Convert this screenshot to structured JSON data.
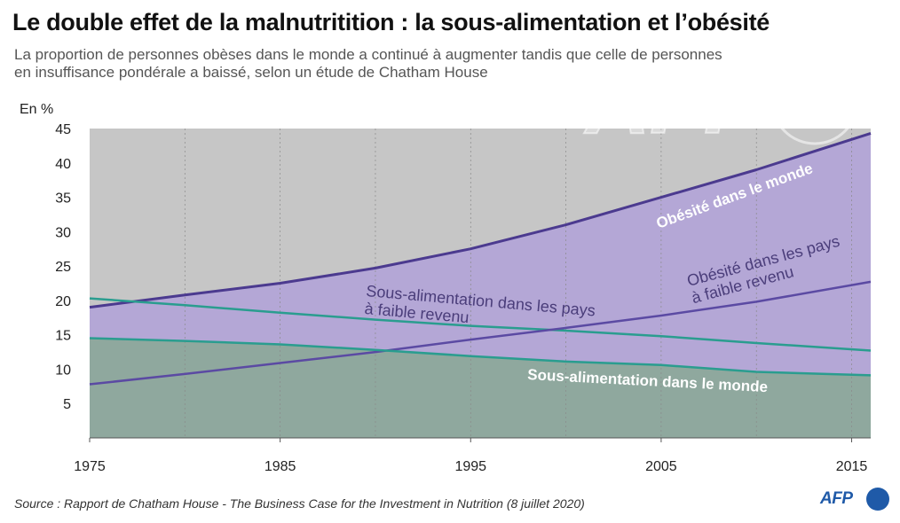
{
  "title": "Le double effet de la malnutritition : la sous-alimentation et l’obésité",
  "subtitle_line1": "La proportion de personnes obèses dans le monde a continué à augmenter tandis que celle de personnes",
  "subtitle_line2": "en insuffisance pondérale a baissé, selon un étude de Chatham House",
  "source": "Source : Rapport de Chatham House - The Business Case for the Investment in Nutrition (8 juillet 2020)",
  "logo_text": "AFP",
  "watermark_text": "AFP",
  "colors": {
    "background_grey": "#c6c6c6",
    "obesity_world_fill": "#b4a7d6",
    "obesity_world_line": "#4b3a8f",
    "undernutrition_world_fill": "#8fa89e",
    "undernutrition_line": "#2a9d8f",
    "obesity_low_income_line": "#5b4aa3"
  },
  "chart_data": {
    "type": "area",
    "ylabel": "En %",
    "xlabel": "",
    "xlim": [
      1975,
      2016
    ],
    "ylim": [
      0,
      45
    ],
    "x_ticks": [
      1975,
      1985,
      1995,
      2005,
      2015
    ],
    "y_ticks": [
      5,
      10,
      15,
      20,
      25,
      30,
      35,
      40,
      45
    ],
    "grid": "vertical",
    "x": [
      1975,
      1980,
      1985,
      1990,
      1995,
      2000,
      2005,
      2010,
      2016
    ],
    "series": [
      {
        "name": "Obésité dans le monde",
        "label_lines": [
          "Obésité dans le monde"
        ],
        "values": [
          19.0,
          20.8,
          22.5,
          24.7,
          27.5,
          31.0,
          35.0,
          39.0,
          44.3
        ]
      },
      {
        "name": "Sous-alimentation dans les pays à faible revenu",
        "label_lines": [
          "Sous-alimentation dans les pays",
          "à faible revenu"
        ],
        "values": [
          20.3,
          19.3,
          18.2,
          17.2,
          16.3,
          15.6,
          14.8,
          13.8,
          12.7
        ]
      },
      {
        "name": "Obésité dans les pays à faible revenu",
        "label_lines": [
          "Obésité dans les pays",
          "à faible revenu"
        ],
        "values": [
          7.8,
          9.3,
          10.9,
          12.5,
          14.3,
          16.0,
          17.8,
          19.8,
          22.7
        ]
      },
      {
        "name": "Sous-alimentation dans le monde",
        "label_lines": [
          "Sous-alimentation dans le monde"
        ],
        "values": [
          14.5,
          14.1,
          13.6,
          12.8,
          11.9,
          11.1,
          10.6,
          9.6,
          9.1
        ]
      }
    ]
  }
}
